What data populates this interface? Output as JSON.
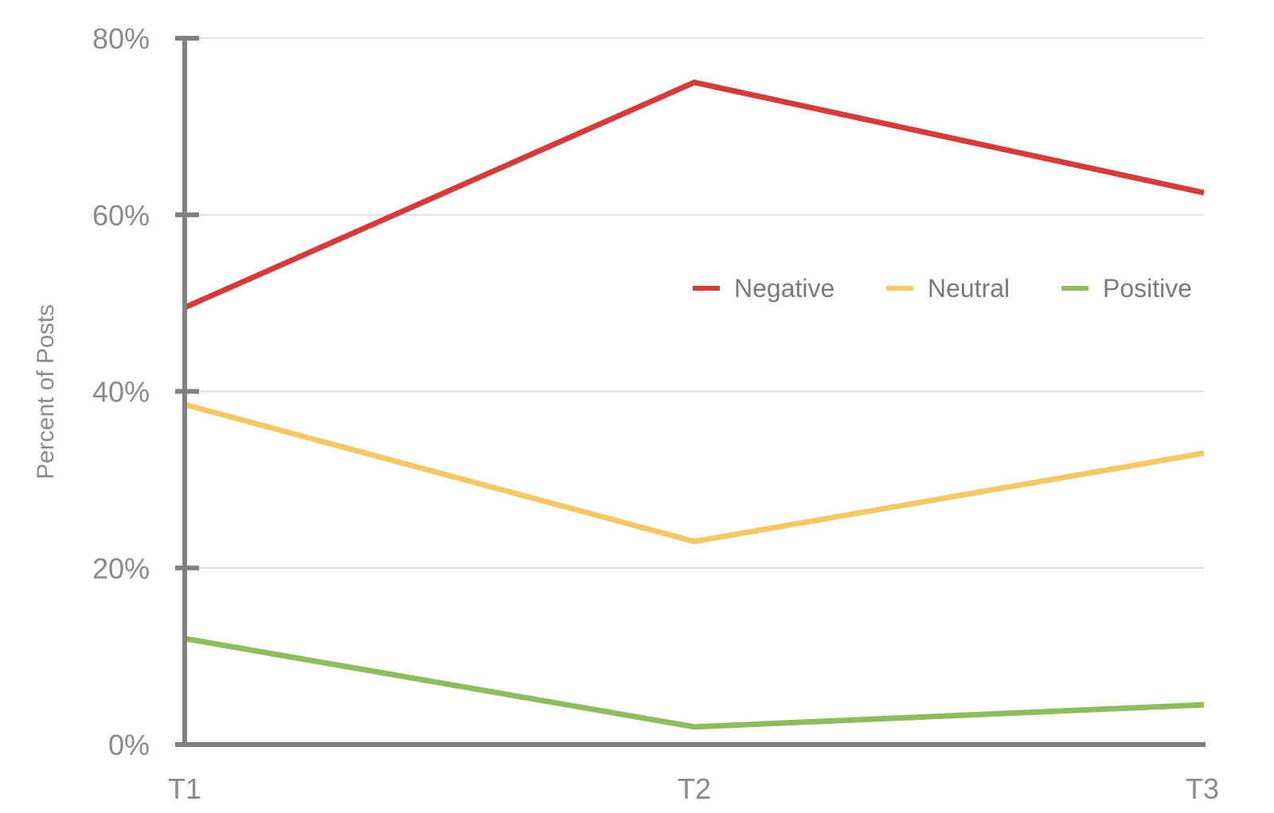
{
  "chart_data": {
    "type": "line",
    "title": "",
    "xlabel": "",
    "ylabel": "Percent of Posts",
    "categories": [
      "T1",
      "T2",
      "T3"
    ],
    "ylim": [
      0,
      80
    ],
    "yticks": [
      0,
      20,
      40,
      60,
      80
    ],
    "ytick_labels": [
      "0%",
      "20%",
      "40%",
      "60%",
      "80%"
    ],
    "grid": "horizontal",
    "legend_position": "center-right",
    "series": [
      {
        "name": "Negative",
        "color": "#d63b3b",
        "values": [
          49.5,
          75,
          62.5
        ]
      },
      {
        "name": "Neutral",
        "color": "#f3c967",
        "values": [
          38.5,
          23,
          33
        ]
      },
      {
        "name": "Positive",
        "color": "#8fbc5e",
        "values": [
          12,
          2,
          4.5
        ]
      }
    ],
    "axis_color": "#808080",
    "grid_color": "#d9d9d9"
  }
}
